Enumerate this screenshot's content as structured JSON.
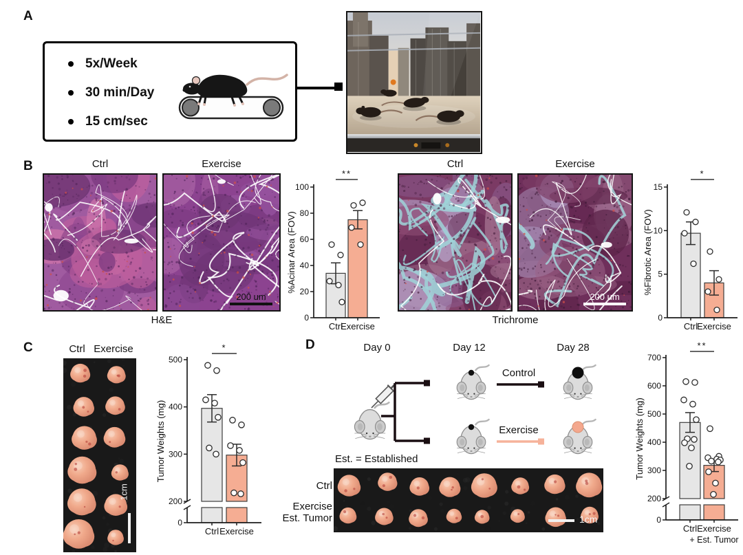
{
  "figure": {
    "panels": {
      "A": {
        "label": "A",
        "protocol": [
          "5x/Week",
          "30 min/Day",
          "15 cm/sec"
        ]
      },
      "B": {
        "label": "B",
        "hne": {
          "ctrl_label": "Ctrl",
          "exercise_label": "Exercise",
          "caption": "H&E",
          "scale_bar": "200 um"
        },
        "trichrome": {
          "ctrl_label": "Ctrl",
          "exercise_label": "Exercise",
          "caption": "Trichrome",
          "scale_bar": "200 um"
        }
      },
      "C": {
        "label": "C",
        "ctrl_label": "Ctrl",
        "exercise_label": "Exercise",
        "scale_bar": "1cm",
        "tumor_grid": {
          "rows": 6,
          "cols": 2
        }
      },
      "D": {
        "label": "D",
        "timepoints": [
          "Day 0",
          "Day 12",
          "Day 28"
        ],
        "arms": [
          "Control",
          "Exercise"
        ],
        "note": "Est. = Established",
        "photo_row1_label": "Ctrl",
        "photo_row2_label_line1": "Exercise",
        "photo_row2_label_line2": "Est. Tumor",
        "scale_bar": "1cm",
        "tumor_grid": {
          "rows": 2,
          "cols": 8
        }
      }
    },
    "colors": {
      "ctrl_bar": "#e6e6e6",
      "exercise_bar": "#f5ad93",
      "control_arm": "#1a0e12",
      "exercise_arm": "#f6b29a"
    }
  },
  "chart_data": [
    {
      "id": "acinar-area",
      "type": "bar",
      "title": "",
      "xlabel": "",
      "ylabel": "%Acinar Area (FOV)",
      "categories": [
        "Ctrl",
        "Exercise"
      ],
      "ylim": [
        0,
        100
      ],
      "yticks": [
        0,
        20,
        40,
        60,
        80,
        100
      ],
      "significance": "**",
      "series": [
        {
          "name": "Ctrl",
          "mean": 34,
          "sem": 8,
          "points": [
            56,
            48,
            28,
            25,
            12
          ],
          "color": "#e6e6e6"
        },
        {
          "name": "Exercise",
          "mean": 75,
          "sem": 7,
          "points": [
            86,
            88,
            69,
            56
          ],
          "color": "#f5ad93"
        }
      ]
    },
    {
      "id": "fibrotic-area",
      "type": "bar",
      "title": "",
      "xlabel": "",
      "ylabel": "%Fibrotic Area (FOV)",
      "categories": [
        "Ctrl",
        "Exercise"
      ],
      "ylim": [
        0,
        15
      ],
      "yticks": [
        0,
        5,
        10,
        15
      ],
      "significance": "*",
      "series": [
        {
          "name": "Ctrl",
          "mean": 9.7,
          "sem": 1.3,
          "points": [
            12.1,
            11,
            9.7,
            6.2
          ],
          "color": "#e6e6e6"
        },
        {
          "name": "Exercise",
          "mean": 4,
          "sem": 1.4,
          "points": [
            7.6,
            4.4,
            3,
            0.9
          ],
          "color": "#f5ad93"
        }
      ]
    },
    {
      "id": "tumor-weights-exercise",
      "type": "bar",
      "title": "",
      "xlabel": "",
      "ylabel": "Tumor Weights (mg)",
      "categories": [
        "Ctrl",
        "Exercise"
      ],
      "ylim": [
        0,
        500
      ],
      "yticks": [
        0,
        200,
        300,
        400,
        500
      ],
      "ybreak": 200,
      "significance": "*",
      "series": [
        {
          "name": "Ctrl",
          "mean": 397,
          "sem": 29,
          "points": [
            488,
            477,
            415,
            408,
            378,
            313,
            300
          ],
          "color": "#e6e6e6"
        },
        {
          "name": "Exercise",
          "mean": 298,
          "sem": 23,
          "points": [
            372,
            362,
            318,
            308,
            282,
            218,
            216
          ],
          "color": "#f5ad93"
        }
      ]
    },
    {
      "id": "tumor-weights-established",
      "type": "bar",
      "title": "",
      "xlabel": "",
      "ylabel": "Tumor Weights (mg)",
      "categories": [
        "Ctrl",
        "Exercise"
      ],
      "category_sublabels": [
        "",
        "+ Est. Tumor"
      ],
      "ylim": [
        0,
        700
      ],
      "yticks": [
        0,
        200,
        300,
        400,
        500,
        600,
        700
      ],
      "ybreak": 200,
      "significance": "**",
      "series": [
        {
          "name": "Ctrl",
          "mean": 470,
          "sem": 35,
          "points": [
            615,
            612,
            550,
            535,
            480,
            412,
            410,
            398,
            380,
            315
          ],
          "color": "#e6e6e6"
        },
        {
          "name": "Exercise + Est. Tumor",
          "mean": 318,
          "sem": 22,
          "points": [
            448,
            350,
            345,
            340,
            337,
            333,
            330,
            295,
            255,
            215
          ],
          "color": "#f5ad93"
        }
      ]
    }
  ]
}
